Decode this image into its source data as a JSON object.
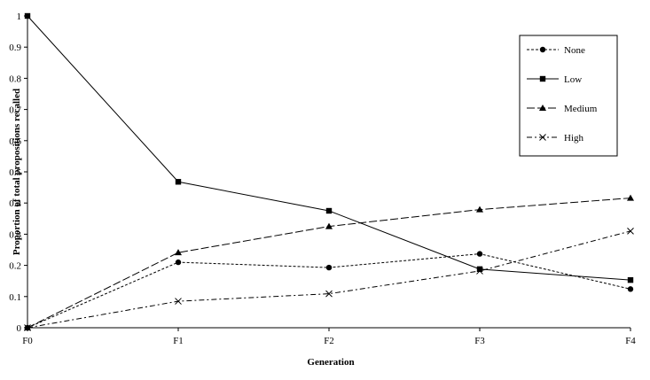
{
  "chart_data": {
    "type": "line",
    "title": "",
    "xlabel": "Generation",
    "ylabel": "Proportion of total propositions recalled",
    "categories": [
      "F0",
      "F1",
      "F2",
      "F3",
      "F4"
    ],
    "ylim": [
      0,
      1
    ],
    "yticks": [
      "0",
      "0.1",
      "0.2",
      "0.3",
      "0.4",
      "0.5",
      "0.6",
      "0.7",
      "0.8",
      "0.9",
      "1"
    ],
    "grid": false,
    "legend": "top-right",
    "series": [
      {
        "name": "None",
        "marker": "circle",
        "dash": "dashed",
        "values": [
          0,
          0.21,
          0.193,
          0.237,
          0.124
        ]
      },
      {
        "name": "Low",
        "marker": "square",
        "dash": "solid",
        "values": [
          1,
          0.468,
          0.375,
          0.188,
          0.153
        ]
      },
      {
        "name": "Medium",
        "marker": "triangle",
        "dash": "long-dash",
        "values": [
          0,
          0.241,
          0.325,
          0.379,
          0.416
        ]
      },
      {
        "name": "High",
        "marker": "x",
        "dash": "dash-dot",
        "values": [
          0,
          0.085,
          0.109,
          0.182,
          0.31
        ]
      }
    ]
  }
}
